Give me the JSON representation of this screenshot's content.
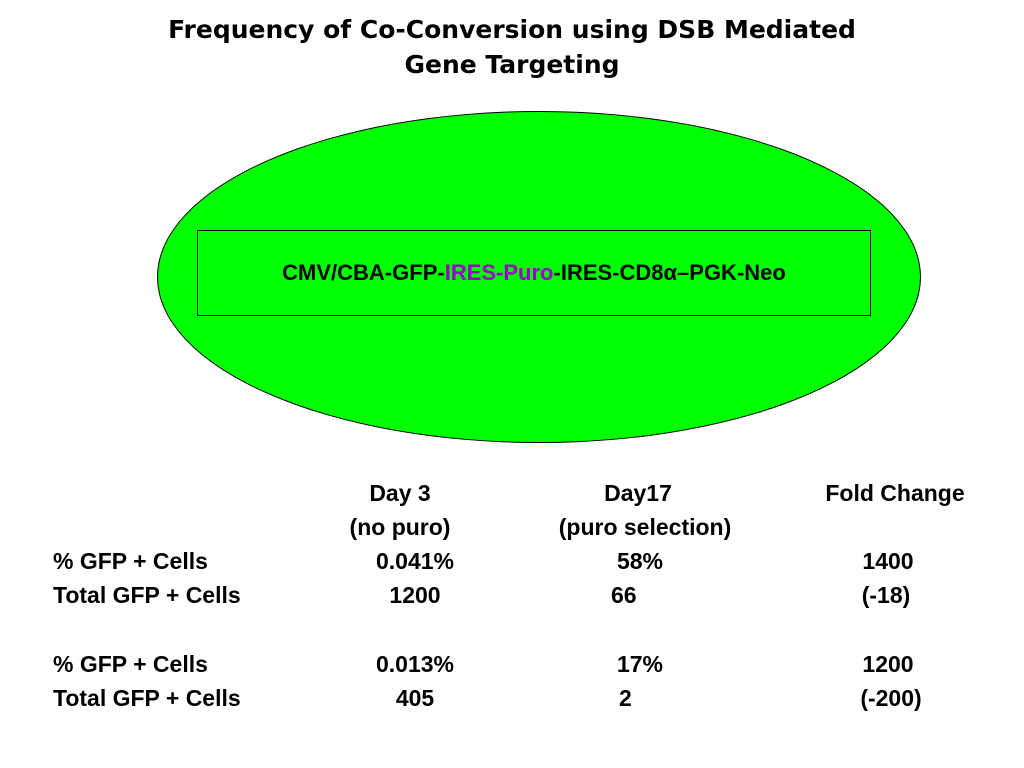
{
  "title": {
    "line1": "Frequency of Co-Conversion using DSB Mediated",
    "line2": "Gene Targeting"
  },
  "construct": {
    "part1": "CMV/CBA-GFP-",
    "part2": "IRES-Puro",
    "part3": "-IRES-CD8α–PGK-Neo",
    "highlight_color": "#9900cc"
  },
  "colors": {
    "ellipse_fill": "#00ff00"
  },
  "table": {
    "headers": {
      "day3": "Day 3",
      "day3_sub": "(no puro)",
      "day17": "Day17",
      "day17_sub": "(puro selection)",
      "fold": "Fold Change"
    },
    "rows": [
      {
        "label": "% GFP + Cells",
        "day3": "0.041%",
        "day17": "58%",
        "fold": "1400"
      },
      {
        "label": "Total GFP + Cells",
        "day3": "1200",
        "day17": "66",
        "fold": "(-18)"
      },
      {
        "label": "% GFP + Cells",
        "day3": "0.013%",
        "day17": "17%",
        "fold": "1200"
      },
      {
        "label": "Total GFP + Cells",
        "day3": "405",
        "day17": "2",
        "fold": "(-200)"
      }
    ]
  }
}
